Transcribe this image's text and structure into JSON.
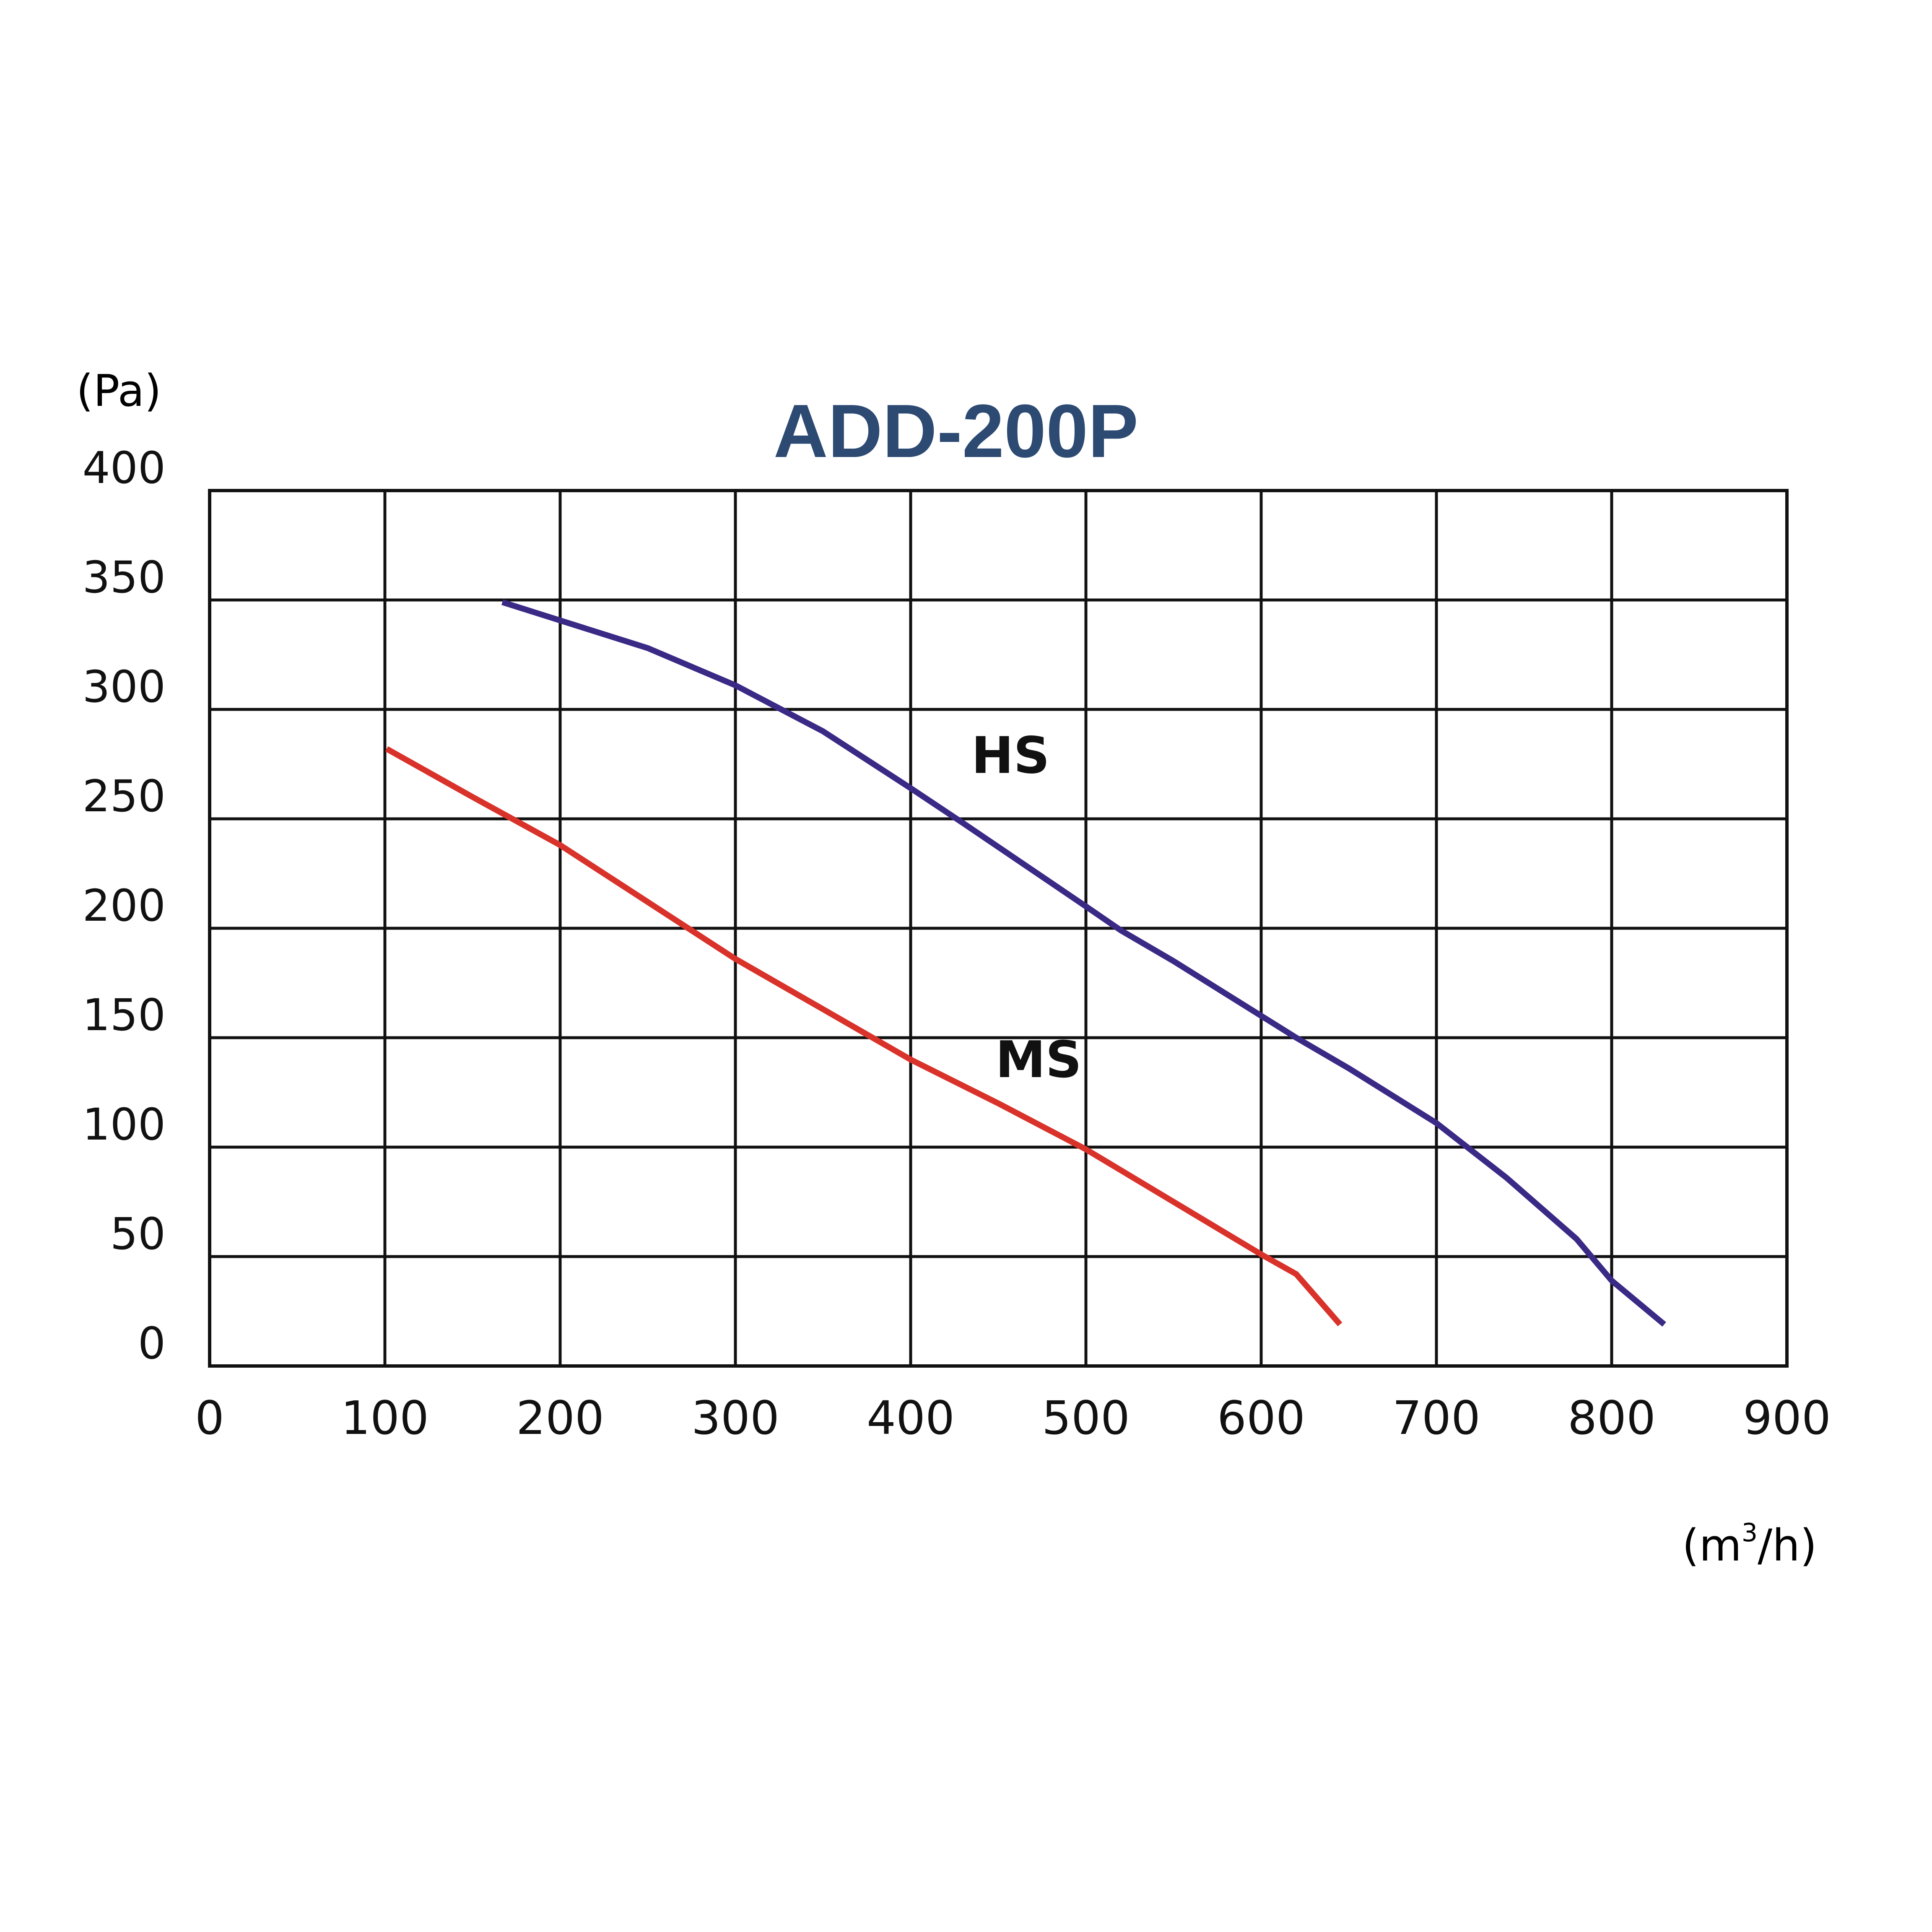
{
  "chart_data": {
    "type": "line",
    "title": "ADD-200P",
    "ylabel": "(Pa)",
    "xlabel_unit": {
      "base": "(m",
      "sup": "3",
      "rest": "/h)"
    },
    "xlim": [
      0,
      900
    ],
    "ylim": [
      0,
      400
    ],
    "x_ticks": [
      "0",
      "100",
      "200",
      "300",
      "400",
      "500",
      "600",
      "700",
      "800",
      "900"
    ],
    "y_ticks": [
      "0",
      "50",
      "100",
      "150",
      "200",
      "250",
      "300",
      "350",
      "400"
    ],
    "grid": true,
    "series": [
      {
        "name": "HS",
        "color": "#3a2a86",
        "points": [
          [
            167,
            349
          ],
          [
            250,
            328
          ],
          [
            300,
            311
          ],
          [
            350,
            290
          ],
          [
            400,
            264
          ],
          [
            430,
            248
          ],
          [
            500,
            210
          ],
          [
            520,
            199
          ],
          [
            550,
            185
          ],
          [
            600,
            160
          ],
          [
            620,
            150
          ],
          [
            650,
            136
          ],
          [
            700,
            111
          ],
          [
            740,
            86
          ],
          [
            780,
            58
          ],
          [
            800,
            39
          ],
          [
            830,
            19
          ]
        ]
      },
      {
        "name": "MS",
        "color": "#d9322a",
        "points": [
          [
            101,
            282
          ],
          [
            150,
            260
          ],
          [
            200,
            238
          ],
          [
            250,
            212
          ],
          [
            300,
            186
          ],
          [
            350,
            163
          ],
          [
            400,
            140
          ],
          [
            450,
            120
          ],
          [
            500,
            99
          ],
          [
            550,
            75
          ],
          [
            600,
            51
          ],
          [
            620,
            42
          ],
          [
            645,
            19
          ]
        ]
      }
    ],
    "series_label_positions": [
      {
        "name": "HS",
        "x": 457,
        "y": 271
      },
      {
        "name": "MS",
        "x": 473,
        "y": 132
      }
    ],
    "colors": {
      "grid": "#111111",
      "title": "#2c4a72",
      "text": "#111111"
    }
  }
}
